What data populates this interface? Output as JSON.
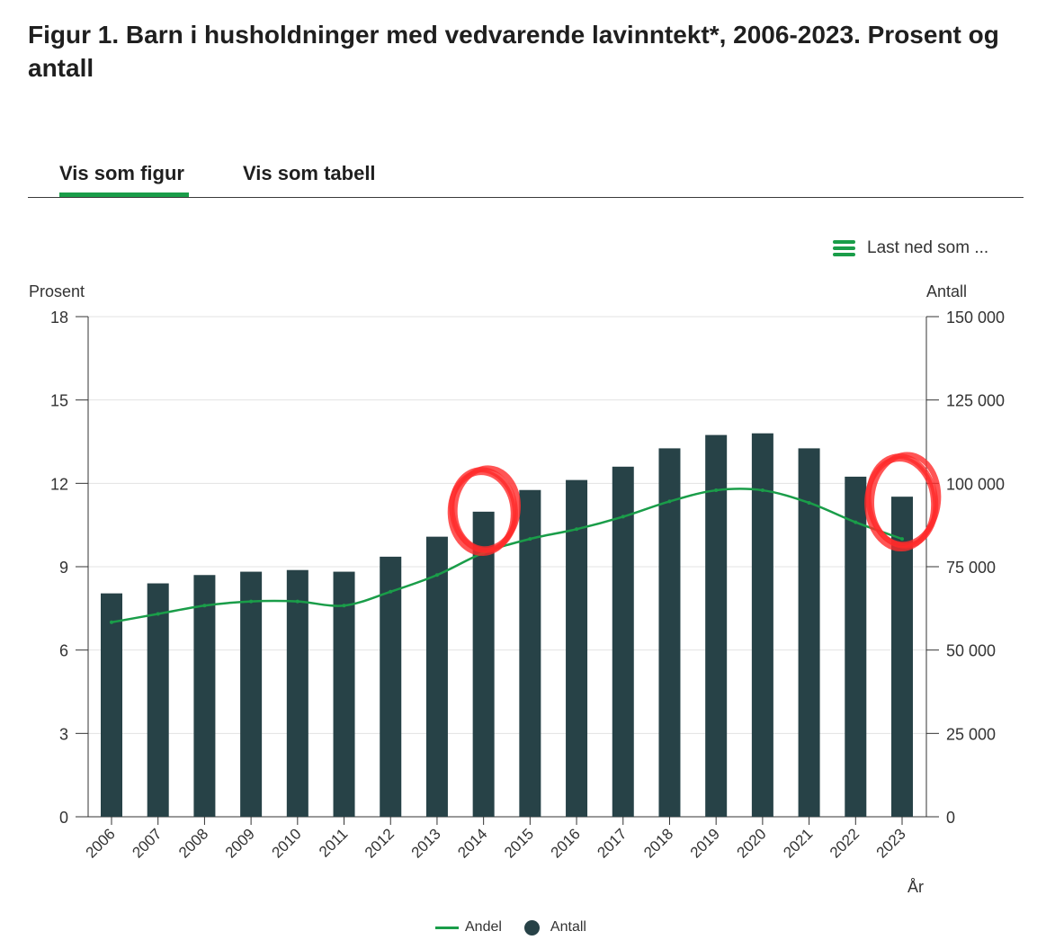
{
  "title": "Figur 1. Barn i husholdninger med vedvarende lavinntekt*, 2006-2023. Prosent og antall",
  "tabs": [
    {
      "label": "Vis som figur",
      "active": true
    },
    {
      "label": "Vis som tabell",
      "active": false
    }
  ],
  "download": {
    "label": "Last ned som ...",
    "icon": "menu-icon"
  },
  "colors": {
    "bar": "#274247",
    "line": "#1a9d49",
    "accent": "#1a9d49",
    "annotation": "#ff2b2b"
  },
  "chart_data": {
    "type": "bar",
    "categories": [
      "2006",
      "2007",
      "2008",
      "2009",
      "2010",
      "2011",
      "2012",
      "2013",
      "2014",
      "2015",
      "2016",
      "2017",
      "2018",
      "2019",
      "2020",
      "2021",
      "2022",
      "2023"
    ],
    "series": [
      {
        "name": "Antall",
        "type": "bar",
        "axis": "right",
        "values": [
          67000,
          70000,
          72500,
          73500,
          74000,
          73500,
          78000,
          84000,
          91500,
          98000,
          101000,
          105000,
          110500,
          114500,
          115000,
          110500,
          102000,
          96000
        ]
      },
      {
        "name": "Andel",
        "type": "line",
        "axis": "left",
        "values": [
          7.0,
          7.3,
          7.6,
          7.75,
          7.75,
          7.6,
          8.1,
          8.7,
          9.5,
          10.0,
          10.35,
          10.8,
          11.35,
          11.75,
          11.75,
          11.3,
          10.6,
          10.0
        ]
      }
    ],
    "ylabel_left": "Prosent",
    "ylabel_right": "Antall",
    "xlabel": "År",
    "ylim_left": [
      0,
      18
    ],
    "ylim_right": [
      0,
      150000
    ],
    "yticks_left": [
      "0",
      "3",
      "6",
      "9",
      "12",
      "15",
      "18"
    ],
    "yticks_right": [
      "0",
      "25 000",
      "50 000",
      "75 000",
      "100 000",
      "125 000",
      "150 000"
    ],
    "grid": true,
    "legend": "bottom-center",
    "annotations": [
      "hand-drawn red circle around 2014",
      "hand-drawn red circle around 2023"
    ]
  }
}
